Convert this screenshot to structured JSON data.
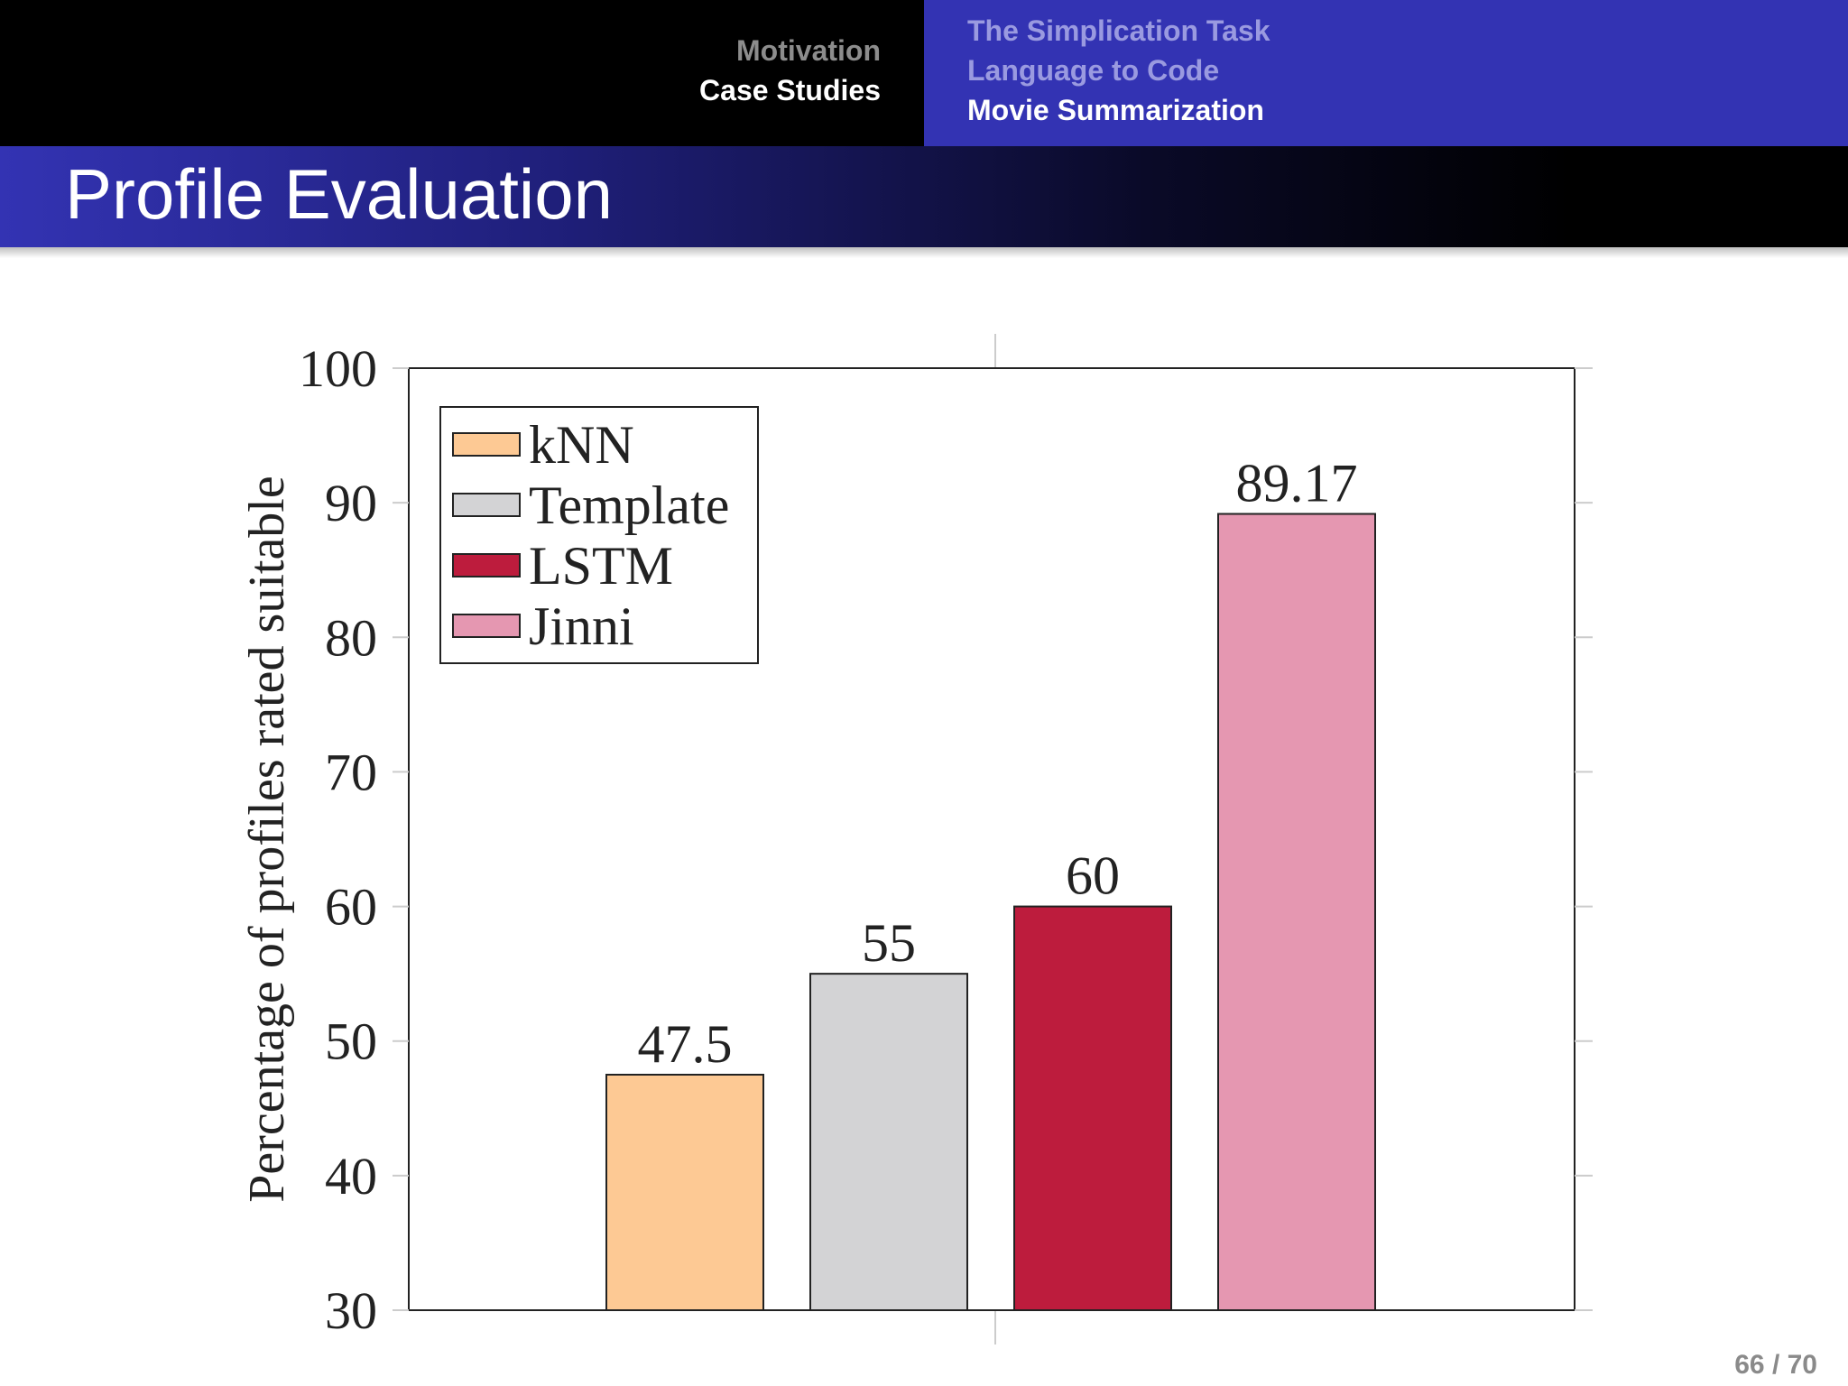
{
  "header": {
    "sections": [
      {
        "label": "Motivation",
        "active": false
      },
      {
        "label": "Case Studies",
        "active": true
      }
    ],
    "subsections": [
      {
        "label": "The Simplication Task",
        "active": false
      },
      {
        "label": "Language to Code",
        "active": false
      },
      {
        "label": "Movie Summarization",
        "active": true
      }
    ]
  },
  "frame": {
    "title": "Profile Evaluation",
    "page": "66 / 70"
  },
  "chart_data": {
    "type": "bar",
    "ylabel": "Percentage of profiles rated suitable",
    "ylim": [
      30,
      100
    ],
    "yticks": [
      30,
      40,
      50,
      60,
      70,
      80,
      90,
      100
    ],
    "grid": false,
    "legend_position": "top-left",
    "series": [
      {
        "name": "kNN",
        "value": 47.5,
        "label": "47.5",
        "color": "#fdc994"
      },
      {
        "name": "Template",
        "value": 55,
        "label": "55",
        "color": "#d3d3d5"
      },
      {
        "name": "LSTM",
        "value": 60,
        "label": "60",
        "color": "#bd1c3d"
      },
      {
        "name": "Jinni",
        "value": 89.17,
        "label": "89.17",
        "color": "#e597b1"
      }
    ]
  }
}
